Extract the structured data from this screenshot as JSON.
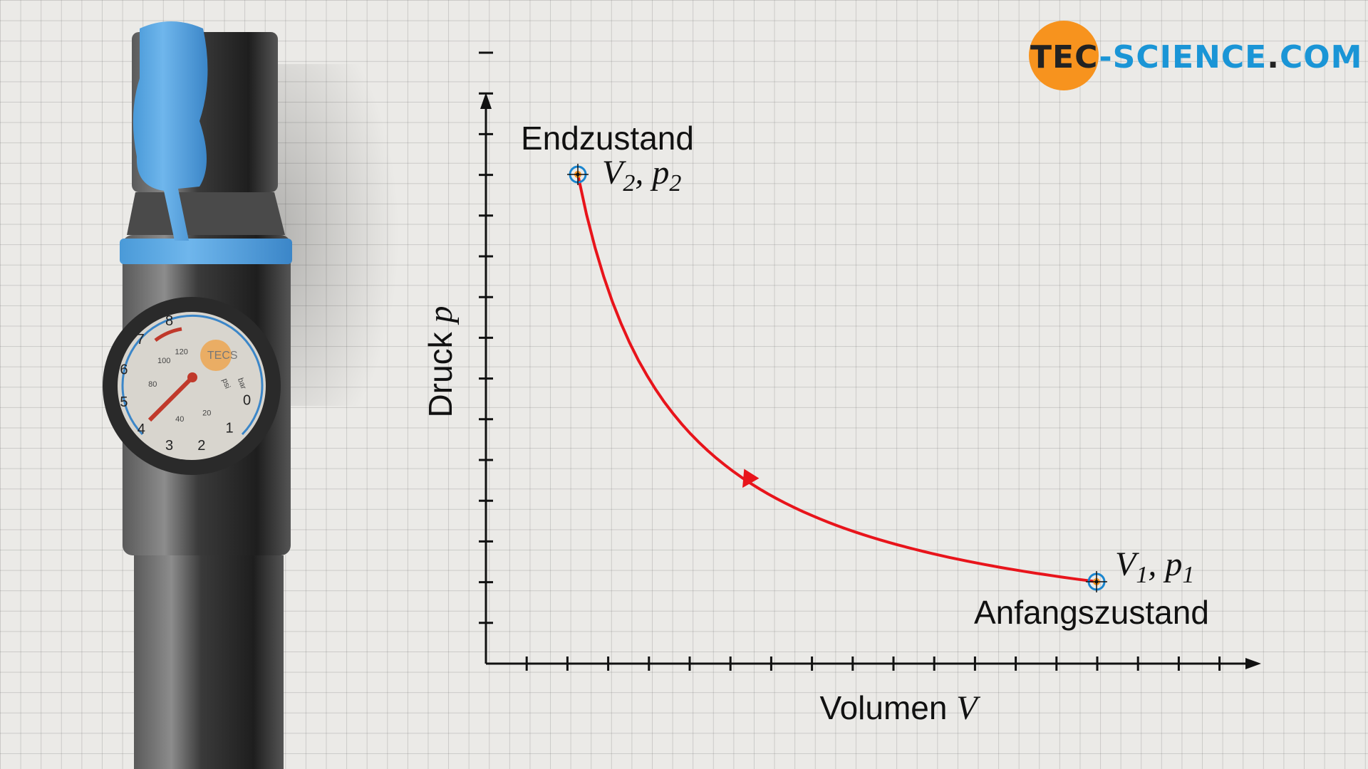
{
  "logo": {
    "tec": "TEC",
    "dash": "-",
    "science": "SCIENCE",
    "dot": ".",
    "com": "COM"
  },
  "diagram": {
    "y_axis_label": {
      "text": "Druck",
      "symbol": "p"
    },
    "x_axis_label": {
      "text": "Volumen",
      "symbol": "V"
    },
    "end_state": {
      "title": "Endzustand",
      "v": "V",
      "v_sub": "2",
      "sep": ", ",
      "p": "p",
      "p_sub": "2"
    },
    "start_state": {
      "title": "Anfangszustand",
      "v": "V",
      "v_sub": "1",
      "sep": ", ",
      "p": "p",
      "p_sub": "1"
    }
  },
  "gauge": {
    "bar_numbers": [
      "8",
      "7",
      "6",
      "5",
      "4",
      "3",
      "2",
      "1",
      "0"
    ],
    "psi_numbers": [
      "120",
      "100",
      "80",
      "40",
      "20"
    ],
    "units": [
      "psi",
      "bar"
    ],
    "brand": "TECS"
  }
}
